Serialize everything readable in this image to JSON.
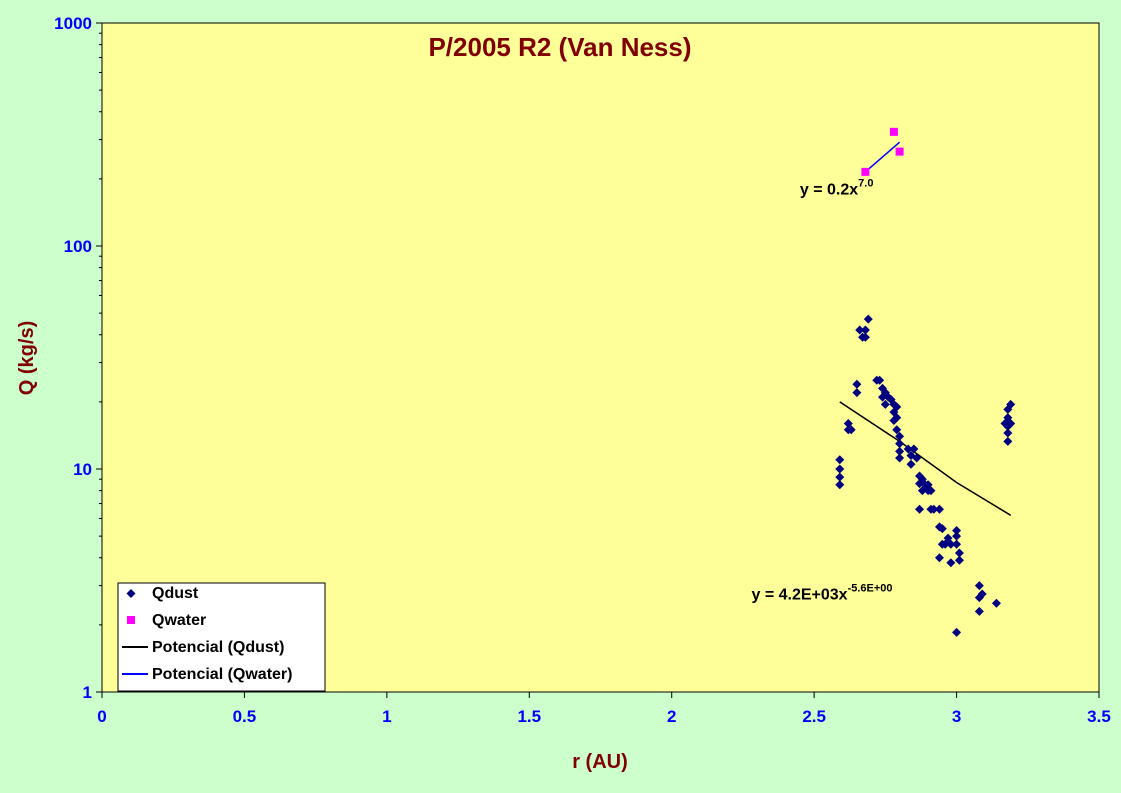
{
  "colors": {
    "background": "#ccffcc",
    "plot_area": "#ffff99",
    "qdust": "#000080",
    "qwater": "#ff00ff",
    "fit_dust": "#000000",
    "fit_water": "#0000ff",
    "title": "#800000",
    "tick_labels": "#0000ff"
  },
  "chart_data": {
    "type": "scatter",
    "title": "P/2005 R2 (Van Ness)",
    "xlabel": "r (AU)",
    "ylabel": "Q (kg/s)",
    "xlim": [
      0,
      3.5
    ],
    "ylim": [
      1,
      1000
    ],
    "y_scale": "log",
    "x_ticks": [
      "0",
      "0.5",
      "1",
      "1.5",
      "2",
      "2.5",
      "3",
      "3.5"
    ],
    "y_ticks": [
      "1",
      "10",
      "100",
      "1000"
    ],
    "grid": false,
    "legend_position": "bottom-left",
    "series": [
      {
        "name": "Qdust",
        "marker": "diamond",
        "points": [
          [
            2.59,
            11.0
          ],
          [
            2.59,
            10.0
          ],
          [
            2.59,
            9.2
          ],
          [
            2.59,
            8.5
          ],
          [
            2.62,
            16.0
          ],
          [
            2.62,
            15.0
          ],
          [
            2.63,
            15.0
          ],
          [
            2.65,
            24.0
          ],
          [
            2.65,
            22.0
          ],
          [
            2.66,
            42.0
          ],
          [
            2.67,
            39.0
          ],
          [
            2.68,
            39.0
          ],
          [
            2.68,
            42.0
          ],
          [
            2.69,
            47.0
          ],
          [
            2.72,
            25.0
          ],
          [
            2.73,
            25.0
          ],
          [
            2.74,
            23.0
          ],
          [
            2.74,
            21.0
          ],
          [
            2.75,
            22.0
          ],
          [
            2.75,
            19.5
          ],
          [
            2.76,
            21.0
          ],
          [
            2.77,
            20.5
          ],
          [
            2.78,
            19.5
          ],
          [
            2.78,
            18.0
          ],
          [
            2.78,
            16.5
          ],
          [
            2.79,
            19.0
          ],
          [
            2.79,
            17.0
          ],
          [
            2.79,
            15.0
          ],
          [
            2.8,
            14.0
          ],
          [
            2.8,
            13.0
          ],
          [
            2.8,
            12.0
          ],
          [
            2.8,
            11.2
          ],
          [
            2.83,
            12.3
          ],
          [
            2.84,
            11.5
          ],
          [
            2.84,
            10.5
          ],
          [
            2.85,
            12.3
          ],
          [
            2.86,
            11.2
          ],
          [
            2.87,
            9.3
          ],
          [
            2.87,
            8.6
          ],
          [
            2.87,
            6.6
          ],
          [
            2.88,
            8.0
          ],
          [
            2.88,
            9.0
          ],
          [
            2.89,
            8.5
          ],
          [
            2.9,
            8.0
          ],
          [
            2.9,
            8.5
          ],
          [
            2.91,
            6.6
          ],
          [
            2.91,
            8.0
          ],
          [
            2.92,
            6.6
          ],
          [
            2.94,
            6.6
          ],
          [
            2.94,
            5.5
          ],
          [
            2.94,
            4.0
          ],
          [
            2.95,
            5.4
          ],
          [
            2.95,
            4.6
          ],
          [
            2.96,
            4.6
          ],
          [
            2.97,
            4.9
          ],
          [
            2.98,
            3.8
          ],
          [
            2.98,
            4.6
          ],
          [
            3.0,
            5.3
          ],
          [
            3.0,
            5.0
          ],
          [
            3.0,
            4.6
          ],
          [
            3.01,
            4.2
          ],
          [
            3.01,
            3.9
          ],
          [
            3.0,
            1.85
          ],
          [
            3.08,
            3.0
          ],
          [
            3.08,
            2.65
          ],
          [
            3.08,
            2.3
          ],
          [
            3.09,
            2.75
          ],
          [
            3.14,
            2.5
          ],
          [
            3.17,
            16.0
          ],
          [
            3.18,
            14.5
          ],
          [
            3.18,
            13.3
          ],
          [
            3.18,
            15.5
          ],
          [
            3.18,
            17.0
          ],
          [
            3.18,
            18.5
          ],
          [
            3.19,
            19.5
          ],
          [
            3.19,
            16.0
          ]
        ]
      },
      {
        "name": "Qwater",
        "marker": "square",
        "points": [
          [
            2.68,
            215
          ],
          [
            2.78,
            325
          ],
          [
            2.8,
            265
          ]
        ]
      },
      {
        "name": "Potencial (Qdust)",
        "type": "line",
        "fit": "y = 4.2E+03x^-5.6E+00",
        "points": [
          [
            2.59,
            20.0
          ],
          [
            2.8,
            13.3
          ],
          [
            3.0,
            8.7
          ],
          [
            3.19,
            6.2
          ]
        ]
      },
      {
        "name": "Potencial (Qwater)",
        "type": "line",
        "fit": "y = 0.2x^7.0",
        "points": [
          [
            2.68,
            215
          ],
          [
            2.8,
            292
          ]
        ]
      }
    ],
    "annotations": {
      "water_fit": {
        "base": "y = 0.2x",
        "exponent": "7.0",
        "at": [
          2.45,
          170
        ]
      },
      "dust_fit": {
        "base": "y = 4.2E+03x",
        "exponent": "-5.6E+00",
        "at": [
          2.28,
          2.6
        ]
      }
    }
  }
}
